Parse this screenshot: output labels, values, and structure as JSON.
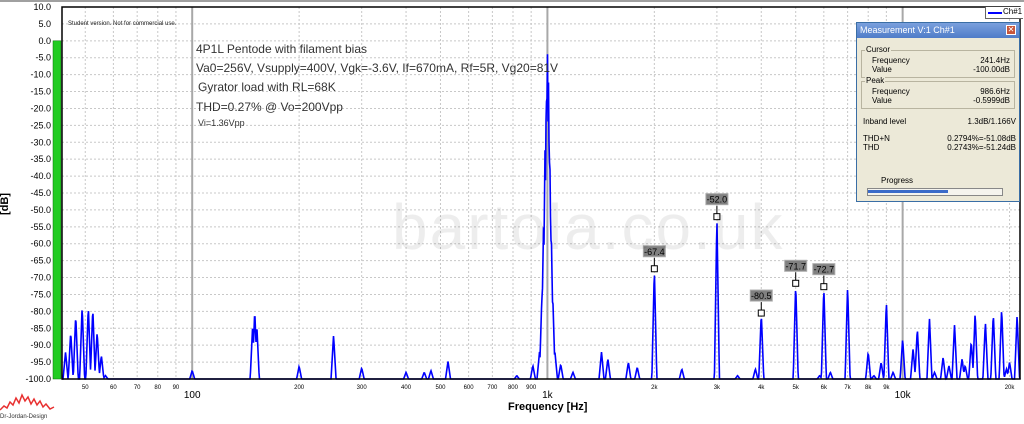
{
  "watermark": "bartola.co.uk",
  "logo_text": "Dr-Jordan-Design",
  "student_notice": "Student version. Not for commercial use.",
  "annotations": [
    "4P1L Pentode with filament bias",
    "Va0=256V, Vsupply=400V, Vgk=-3.6V, If=670mA, Rf=5R, Vg20=81V",
    "Gyrator load with RL=68K",
    "THD=0.27% @ Vo=200Vpp",
    "Vi=1.36Vpp"
  ],
  "legend": {
    "label": "Ch#1",
    "color": "#0000ff"
  },
  "level_meter": {
    "value_db": 0.0,
    "color": "#22cc22"
  },
  "measurement": {
    "title": "Measurement V:1 Ch#1",
    "close_icon": "close-x-icon",
    "cursor": {
      "label": "Cursor",
      "frequency_label": "Frequency",
      "frequency": "241.4Hz",
      "value_label": "Value",
      "value": "-100.00dB"
    },
    "peak": {
      "label": "Peak",
      "frequency_label": "Frequency",
      "frequency": "986.6Hz",
      "value_label": "Value",
      "value": "-0.5999dB"
    },
    "inband_label": "Inband level",
    "inband": "1.3dB/1.166V",
    "thdn_label": "THD+N",
    "thdn": "0.2794%=-51.08dB",
    "thd_label": "THD",
    "thd": "0.2743%=-51.24dB",
    "progress_label": "Progress",
    "progress": 0.6
  },
  "chart_data": {
    "type": "line",
    "xlabel": "Frequency [Hz]",
    "ylabel": "[dB]",
    "xscale": "log",
    "xlim": [
      43,
      21400
    ],
    "ylim": [
      -100,
      10
    ],
    "grid": true,
    "legend_position": "top-right",
    "series_color": "#0000ff",
    "yticks": [
      "10.0",
      "5.0",
      "0.0",
      "-5.0",
      "-10.0",
      "-15.0",
      "-20.0",
      "-25.0",
      "-30.0",
      "-35.0",
      "-40.0",
      "-45.0",
      "-50.0",
      "-55.0",
      "-60.0",
      "-65.0",
      "-70.0",
      "-75.0",
      "-80.0",
      "-85.0",
      "-90.0",
      "-95.0",
      "-100.0"
    ],
    "xticks_minor": [
      {
        "f": 50,
        "label": "50"
      },
      {
        "f": 60,
        "label": "60"
      },
      {
        "f": 70,
        "label": "70"
      },
      {
        "f": 80,
        "label": "80"
      },
      {
        "f": 90,
        "label": "90"
      },
      {
        "f": 200,
        "label": "200"
      },
      {
        "f": 300,
        "label": "300"
      },
      {
        "f": 400,
        "label": "400"
      },
      {
        "f": 500,
        "label": "500"
      },
      {
        "f": 600,
        "label": "600"
      },
      {
        "f": 700,
        "label": "700"
      },
      {
        "f": 800,
        "label": "800"
      },
      {
        "f": 900,
        "label": "900"
      },
      {
        "f": 2000,
        "label": "2k"
      },
      {
        "f": 3000,
        "label": "3k"
      },
      {
        "f": 4000,
        "label": "4k"
      },
      {
        "f": 5000,
        "label": "5k"
      },
      {
        "f": 6000,
        "label": "6k"
      },
      {
        "f": 7000,
        "label": "7k"
      },
      {
        "f": 8000,
        "label": "8k"
      },
      {
        "f": 9000,
        "label": "9k"
      },
      {
        "f": 20000,
        "label": "20k"
      }
    ],
    "xticks_major": [
      {
        "f": 100,
        "label": "100"
      },
      {
        "f": 1000,
        "label": "1k"
      },
      {
        "f": 10000,
        "label": "10k"
      }
    ],
    "peaks": [
      [
        44,
        -92
      ],
      [
        45.5,
        -86
      ],
      [
        47,
        -81
      ],
      [
        49,
        -78.4
      ],
      [
        51,
        -78.4
      ],
      [
        52.5,
        -79
      ],
      [
        54,
        -86
      ],
      [
        55.5,
        -93
      ],
      [
        57,
        -99
      ],
      [
        100,
        -97.5
      ],
      [
        148,
        -84
      ],
      [
        150,
        -79.6
      ],
      [
        152,
        -84
      ],
      [
        200,
        -96.2
      ],
      [
        250,
        -87
      ],
      [
        300,
        -96.7
      ],
      [
        400,
        -98
      ],
      [
        450,
        -98
      ],
      [
        470,
        -97.5
      ],
      [
        525,
        -94.8
      ],
      [
        820,
        -99
      ],
      [
        910,
        -96
      ],
      [
        950,
        -92
      ],
      [
        965,
        -75
      ],
      [
        975,
        -55
      ],
      [
        985,
        -30
      ],
      [
        993,
        -12
      ],
      [
        1000,
        -0.6
      ],
      [
        1007,
        -12
      ],
      [
        1015,
        -30
      ],
      [
        1025,
        -55
      ],
      [
        1035,
        -75
      ],
      [
        1050,
        -92
      ],
      [
        1090,
        -95.6
      ],
      [
        1180,
        -98
      ],
      [
        1420,
        -92
      ],
      [
        1480,
        -94
      ],
      [
        1690,
        -95
      ],
      [
        1790,
        -96.5
      ],
      [
        2000,
        -67.4
      ],
      [
        2390,
        -97
      ],
      [
        3000,
        -52.0
      ],
      [
        3430,
        -99
      ],
      [
        3850,
        -97
      ],
      [
        4000,
        -80.5
      ],
      [
        5000,
        -71.7
      ],
      [
        5840,
        -99
      ],
      [
        6000,
        -72.7
      ],
      [
        6260,
        -98
      ],
      [
        7000,
        -72.5
      ],
      [
        8000,
        -92
      ],
      [
        8300,
        -99
      ],
      [
        8700,
        -95
      ],
      [
        9000,
        -77
      ],
      [
        9400,
        -98
      ],
      [
        10000,
        -88
      ],
      [
        10700,
        -91
      ],
      [
        11000,
        -85
      ],
      [
        11900,
        -82
      ],
      [
        12300,
        -98
      ],
      [
        13000,
        -93.5
      ],
      [
        13500,
        -96
      ],
      [
        14000,
        -83.8
      ],
      [
        14700,
        -94
      ],
      [
        15000,
        -96
      ],
      [
        15600,
        -88.8
      ],
      [
        16000,
        -80.2
      ],
      [
        17100,
        -83
      ],
      [
        18000,
        -80.5
      ],
      [
        19000,
        -79
      ],
      [
        19600,
        -97
      ],
      [
        20000,
        -95
      ],
      [
        21000,
        -81
      ]
    ],
    "marked_peaks": [
      {
        "f": 2000,
        "db": -67.4,
        "label": "-67.4"
      },
      {
        "f": 3000,
        "db": -52.0,
        "label": "-52.0"
      },
      {
        "f": 4000,
        "db": -80.5,
        "label": "-80.5"
      },
      {
        "f": 5000,
        "db": -71.7,
        "label": "-71.7"
      },
      {
        "f": 6000,
        "db": -72.7,
        "label": "-72.7"
      }
    ]
  }
}
